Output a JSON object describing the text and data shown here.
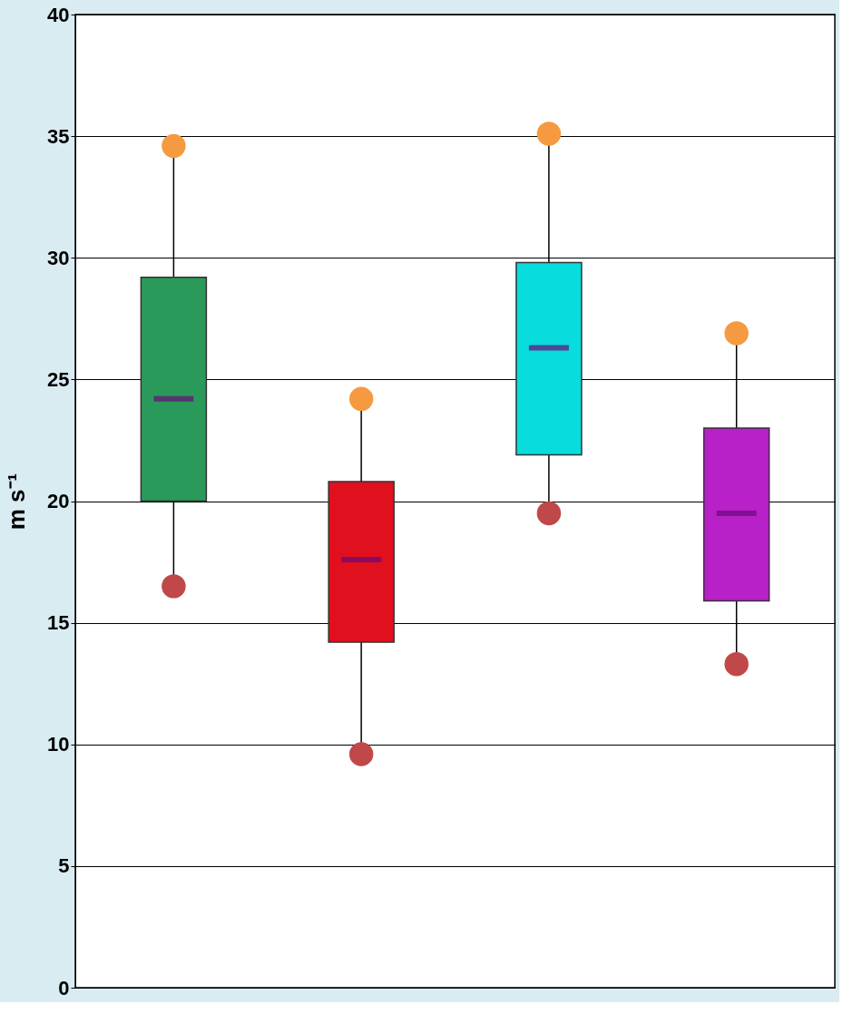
{
  "chart_data": {
    "type": "box",
    "ylabel": "m s⁻¹",
    "categories": [
      null,
      null,
      null,
      null
    ],
    "colors": [
      "#2a9a5a",
      "#e0101e",
      "#08dcdc",
      "#b820c8"
    ],
    "boxes": [
      {
        "low": 16.5,
        "q1": 20.0,
        "median": 24.2,
        "q3": 29.2,
        "high": 34.6
      },
      {
        "low": 9.6,
        "q1": 14.2,
        "median": 17.6,
        "q3": 20.8,
        "high": 24.2
      },
      {
        "low": 19.5,
        "q1": 21.9,
        "median": 26.3,
        "q3": 29.8,
        "high": 35.1
      },
      {
        "low": 13.3,
        "q1": 15.9,
        "median": 19.5,
        "q3": 23.0,
        "high": 26.9
      }
    ],
    "series": [
      {
        "type": "scatter",
        "color": "#f59a40",
        "values": [
          34.6,
          24.2,
          35.1,
          26.9
        ]
      },
      {
        "type": "scatter",
        "color": "#c04848",
        "values": [
          16.5,
          9.6,
          19.5,
          13.3
        ]
      }
    ],
    "ylim": [
      0,
      40
    ],
    "yticks": [
      0,
      5,
      10,
      15,
      20,
      25,
      30,
      35,
      40
    ],
    "grid": "y",
    "tick_labels": "y",
    "marker": "circle"
  }
}
